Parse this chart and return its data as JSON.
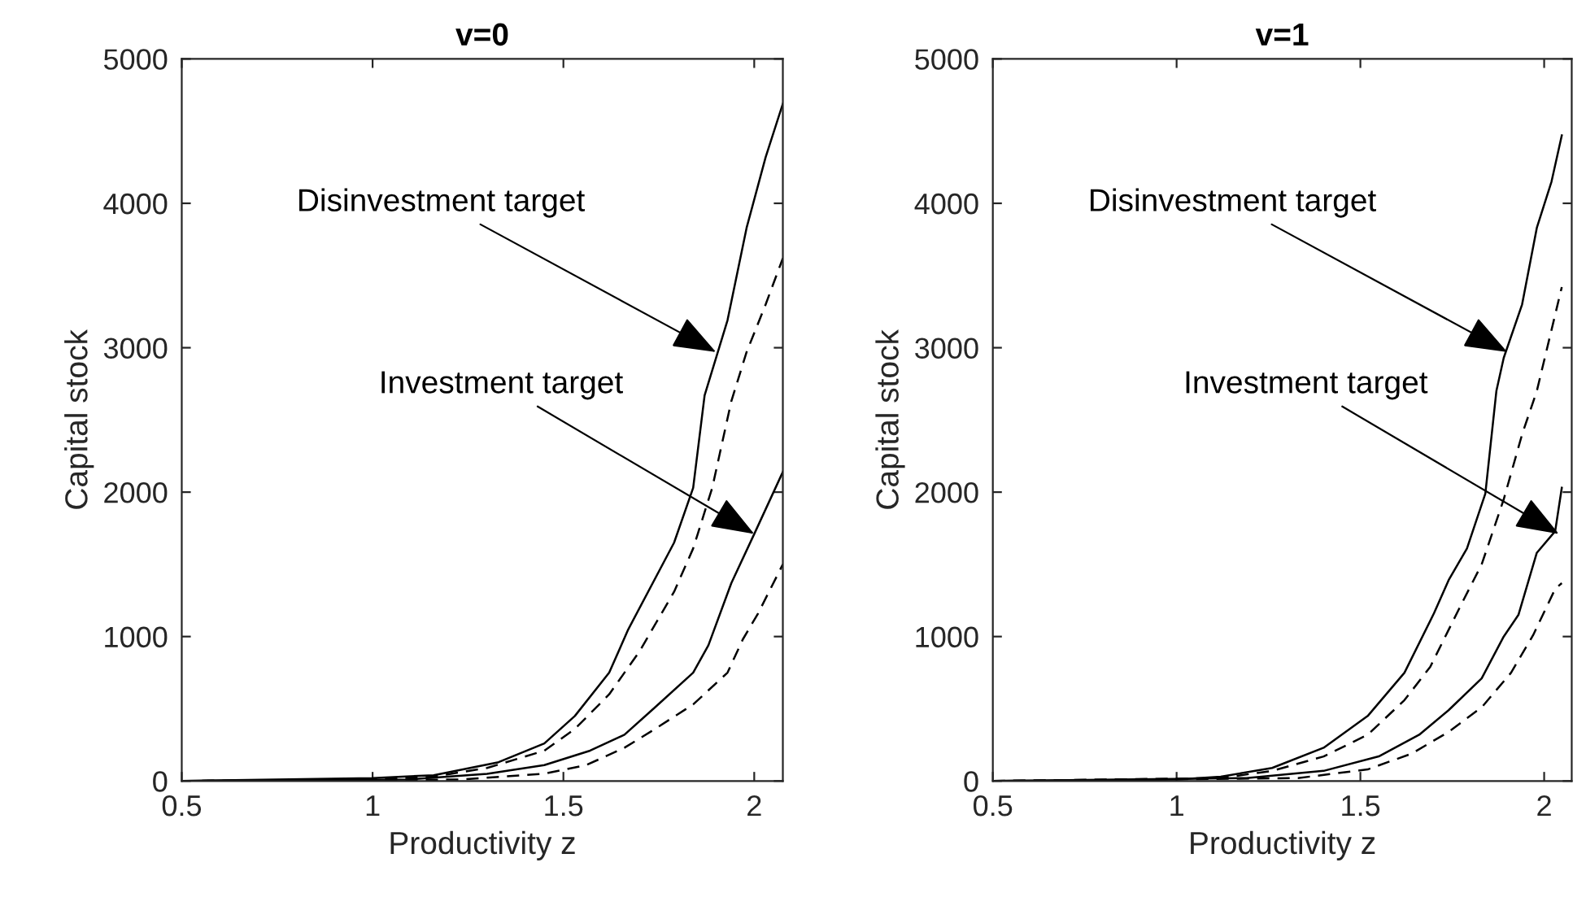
{
  "chart_data": [
    {
      "type": "line",
      "title": "v=0",
      "xlabel": "Productivity z",
      "ylabel": "Capital stock",
      "xlim": [
        0.5,
        2.075
      ],
      "xticks": [
        0.5,
        1,
        1.5,
        2
      ],
      "ylim": [
        0,
        5000
      ],
      "yticks": [
        0,
        1000,
        2000,
        3000,
        4000,
        5000
      ],
      "grid": false,
      "legend": false,
      "marker": "none",
      "annotations": [
        {
          "text": "Disinvestment target",
          "x": 1.9,
          "y": 2970
        },
        {
          "text": "Investment target",
          "x": 2.0,
          "y": 1710
        }
      ],
      "series": [
        {
          "color": "#000000",
          "line_style": "solid",
          "x": [
            0.5,
            1.0,
            1.16,
            1.33,
            1.45,
            1.53,
            1.62,
            1.67,
            1.79,
            1.84,
            1.87,
            1.93,
            1.98,
            2.03,
            2.075
          ],
          "values": [
            0,
            20,
            40,
            130,
            260,
            450,
            750,
            1050,
            1650,
            2030,
            2670,
            3190,
            3830,
            4320,
            4690
          ]
        },
        {
          "color": "#000000",
          "line_style": "dashed",
          "x": [
            0.5,
            1.0,
            1.16,
            1.3,
            1.45,
            1.53,
            1.62,
            1.7,
            1.79,
            1.84,
            1.89,
            1.94,
            1.98,
            2.03,
            2.075
          ],
          "values": [
            0,
            10,
            30,
            90,
            210,
            360,
            600,
            900,
            1310,
            1610,
            2030,
            2630,
            2970,
            3300,
            3620
          ]
        },
        {
          "color": "#000000",
          "line_style": "solid",
          "x": [
            0.5,
            1.09,
            1.3,
            1.45,
            1.57,
            1.66,
            1.74,
            1.84,
            1.88,
            1.94,
            2.0,
            2.075
          ],
          "values": [
            0,
            10,
            50,
            110,
            210,
            320,
            510,
            750,
            940,
            1370,
            1710,
            2140
          ]
        },
        {
          "color": "#000000",
          "line_style": "dashed",
          "x": [
            0.5,
            1.23,
            1.45,
            1.56,
            1.66,
            1.74,
            1.84,
            1.93,
            1.97,
            2.01,
            2.075
          ],
          "values": [
            0,
            10,
            50,
            110,
            230,
            360,
            530,
            750,
            980,
            1160,
            1500
          ]
        }
      ]
    },
    {
      "type": "line",
      "title": "v=1",
      "xlabel": "Productivity z",
      "ylabel": "Capital stock",
      "xlim": [
        0.5,
        2.075
      ],
      "xticks": [
        0.5,
        1,
        1.5,
        2
      ],
      "ylim": [
        0,
        5000
      ],
      "yticks": [
        0,
        1000,
        2000,
        3000,
        4000,
        5000
      ],
      "grid": false,
      "legend": false,
      "marker": "none",
      "annotations": [
        {
          "text": "Disinvestment target",
          "x": 1.9,
          "y": 2970
        },
        {
          "text": "Investment target",
          "x": 2.04,
          "y": 1710
        }
      ],
      "series": [
        {
          "color": "#000000",
          "line_style": "solid",
          "x": [
            0.5,
            1.0,
            1.12,
            1.26,
            1.4,
            1.52,
            1.62,
            1.7,
            1.74,
            1.79,
            1.84,
            1.87,
            1.89,
            1.94,
            1.98,
            2.02,
            2.048
          ],
          "values": [
            0,
            10,
            30,
            90,
            230,
            450,
            750,
            1160,
            1390,
            1610,
            1990,
            2700,
            2930,
            3300,
            3830,
            4150,
            4470
          ]
        },
        {
          "color": "#000000",
          "line_style": "dashed",
          "x": [
            0.5,
            1.12,
            1.26,
            1.4,
            1.52,
            1.62,
            1.69,
            1.77,
            1.83,
            1.89,
            1.94,
            1.98,
            2.048
          ],
          "values": [
            0,
            20,
            70,
            170,
            320,
            560,
            790,
            1200,
            1500,
            1950,
            2400,
            2700,
            3420
          ]
        },
        {
          "color": "#000000",
          "line_style": "solid",
          "x": [
            0.5,
            1.19,
            1.4,
            1.55,
            1.66,
            1.74,
            1.83,
            1.89,
            1.93,
            1.98,
            2.03,
            2.048
          ],
          "values": [
            0,
            20,
            70,
            170,
            320,
            490,
            710,
            1000,
            1150,
            1580,
            1730,
            2030
          ]
        },
        {
          "color": "#000000",
          "line_style": "dashed",
          "x": [
            0.5,
            1.33,
            1.52,
            1.64,
            1.74,
            1.83,
            1.91,
            1.97,
            2.03,
            2.048
          ],
          "values": [
            0,
            20,
            80,
            190,
            340,
            510,
            750,
            1010,
            1330,
            1370
          ]
        }
      ]
    }
  ]
}
